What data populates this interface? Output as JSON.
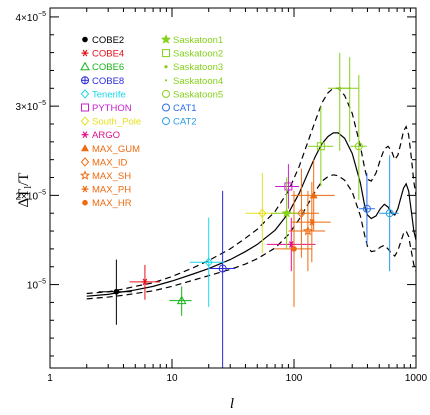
{
  "chart_data": {
    "type": "scatter",
    "title": "",
    "xlabel": "l",
    "ylabel": "ΔT",
    "ylabel_sub": "l",
    "ylabel_tail": "/T",
    "xscale": "log",
    "yscale": "linear",
    "xlim": [
      1,
      1000
    ],
    "ylim": [
      6.5e-07,
      4.1e-05
    ],
    "x_ticks": [
      {
        "value": 1,
        "label": "1"
      },
      {
        "value": 10,
        "label": "10"
      },
      {
        "value": 100,
        "label": "100"
      },
      {
        "value": 1000,
        "label": "1000"
      }
    ],
    "y_ticks": [
      {
        "value": 1e-05,
        "mant": "10",
        "exp": "−5"
      },
      {
        "value": 2e-05,
        "mant": "2×10",
        "exp": "−5"
      },
      {
        "value": 3e-05,
        "mant": "3×10",
        "exp": "−5"
      },
      {
        "value": 4e-05,
        "mant": "4×10",
        "exp": "−5"
      }
    ],
    "legend_position": "top-left",
    "series": [
      {
        "name": "COBE2",
        "color": "#000000",
        "marker": "filled-circle",
        "points": [
          {
            "x": 3.5,
            "y": 9.2e-06,
            "ylo": 5.5e-06,
            "yhi": 1.28e-05,
            "xlo": 2.5,
            "xhi": 4.7
          }
        ]
      },
      {
        "name": "COBE4",
        "color": "#e8101c",
        "marker": "star",
        "points": [
          {
            "x": 6,
            "y": 1.03e-05,
            "ylo": 8.3e-06,
            "yhi": 1.22e-05,
            "xlo": 4.5,
            "xhi": 8
          }
        ]
      },
      {
        "name": "COBE6",
        "color": "#19b419",
        "marker": "open-triangle",
        "points": [
          {
            "x": 12,
            "y": 8.2e-06,
            "ylo": 6.5e-06,
            "yhi": 9.8e-06,
            "xlo": 9.5,
            "xhi": 14.5
          }
        ]
      },
      {
        "name": "COBE8",
        "color": "#2a2ad8",
        "marker": "crossed-circle",
        "points": [
          {
            "x": 26,
            "y": 1.18e-05,
            "ylo": 0.0,
            "yhi": 2.05e-05,
            "xlo": 20,
            "xhi": 33
          }
        ]
      },
      {
        "name": "Tenerife",
        "color": "#1ad7e6",
        "marker": "open-diamond",
        "points": [
          {
            "x": 20,
            "y": 1.25e-05,
            "ylo": 7.5e-06,
            "yhi": 1.75e-05,
            "xlo": 14,
            "xhi": 27
          }
        ]
      },
      {
        "name": "PYTHON",
        "color": "#c71fd0",
        "marker": "open-square",
        "points": [
          {
            "x": 90,
            "y": 2.1e-05,
            "ylo": 1.85e-05,
            "yhi": 2.35e-05,
            "xlo": 70,
            "xhi": 110
          }
        ]
      },
      {
        "name": "South_Pole",
        "color": "#e6e020",
        "marker": "open-diamond",
        "points": [
          {
            "x": 55,
            "y": 1.8e-05,
            "ylo": 1.35e-05,
            "yhi": 2.25e-05,
            "xlo": 40,
            "xhi": 75
          }
        ]
      },
      {
        "name": "ARGO",
        "color": "#e0108c",
        "marker": "star",
        "points": [
          {
            "x": 95,
            "y": 1.45e-05,
            "ylo": 1.15e-05,
            "yhi": 1.75e-05,
            "xlo": 60,
            "xhi": 150
          }
        ]
      },
      {
        "name": "MAX_GUM",
        "color": "#ee6a10",
        "marker": "filled-triangle",
        "points": [
          {
            "x": 145,
            "y": 2e-05,
            "ylo": 1.6e-05,
            "yhi": 2.4e-05,
            "xlo": 95,
            "xhi": 215
          }
        ]
      },
      {
        "name": "MAX_ID",
        "color": "#ee6a10",
        "marker": "open-diamond",
        "points": [
          {
            "x": 115,
            "y": 1.8e-05,
            "ylo": 1.3e-05,
            "yhi": 2.3e-05,
            "xlo": 80,
            "xhi": 160
          }
        ]
      },
      {
        "name": "MAX_SH",
        "color": "#ee6a10",
        "marker": "open-star",
        "points": [
          {
            "x": 130,
            "y": 1.6e-05,
            "ylo": 1.15e-05,
            "yhi": 2.05e-05,
            "xlo": 90,
            "xhi": 180
          }
        ]
      },
      {
        "name": "MAX_PH",
        "color": "#ee6a10",
        "marker": "star",
        "points": [
          {
            "x": 140,
            "y": 1.7e-05,
            "ylo": 1.25e-05,
            "yhi": 2.15e-05,
            "xlo": 95,
            "xhi": 200
          }
        ]
      },
      {
        "name": "MAX_HR",
        "color": "#ee6a10",
        "marker": "filled-circle",
        "points": [
          {
            "x": 100,
            "y": 1.4e-05,
            "ylo": 7.5e-06,
            "yhi": 2.05e-05,
            "xlo": 70,
            "xhi": 140
          }
        ]
      },
      {
        "name": "Saskatoon1",
        "color": "#86d11c",
        "marker": "filled-star",
        "points": [
          {
            "x": 87,
            "y": 1.8e-05,
            "ylo": 1.4e-05,
            "yhi": 2.2e-05,
            "xlo": 65,
            "xhi": 110
          }
        ]
      },
      {
        "name": "Saskatoon2",
        "color": "#86d11c",
        "marker": "open-square",
        "points": [
          {
            "x": 166,
            "y": 2.55e-05,
            "ylo": 2.1e-05,
            "yhi": 3e-05,
            "xlo": 130,
            "xhi": 210
          }
        ]
      },
      {
        "name": "Saskatoon3",
        "color": "#86d11c",
        "marker": "dot",
        "points": [
          {
            "x": 237,
            "y": 3.2e-05,
            "ylo": 2.5e-05,
            "yhi": 3.6e-05,
            "xlo": 190,
            "xhi": 290
          }
        ]
      },
      {
        "name": "Saskatoon4",
        "color": "#86d11c",
        "marker": "small-dot",
        "points": [
          {
            "x": 286,
            "y": 3.2e-05,
            "ylo": 2.6e-05,
            "yhi": 3.55e-05,
            "xlo": 240,
            "xhi": 340
          }
        ]
      },
      {
        "name": "Saskatoon5",
        "color": "#86d11c",
        "marker": "open-circle",
        "points": [
          {
            "x": 340,
            "y": 2.55e-05,
            "ylo": 1.95e-05,
            "yhi": 3.35e-05,
            "xlo": 290,
            "xhi": 395
          }
        ]
      },
      {
        "name": "CAT1",
        "color": "#2a6fe6",
        "marker": "open-circle",
        "points": [
          {
            "x": 396,
            "y": 1.85e-05,
            "ylo": 1.45e-05,
            "yhi": 2.25e-05,
            "xlo": 340,
            "xhi": 460
          }
        ]
      },
      {
        "name": "CAT2",
        "color": "#2a9be6",
        "marker": "open-circle",
        "points": [
          {
            "x": 608,
            "y": 1.8e-05,
            "ylo": 1.15e-05,
            "yhi": 2.45e-05,
            "xlo": 500,
            "xhi": 720
          }
        ]
      }
    ],
    "curves": [
      {
        "style": "solid",
        "color": "#000000",
        "points": [
          [
            2,
            8.7e-06
          ],
          [
            3,
            8.9e-06
          ],
          [
            4,
            9.2e-06
          ],
          [
            5,
            9.4e-06
          ],
          [
            7,
            9.8e-06
          ],
          [
            10,
            1.04e-05
          ],
          [
            15,
            1.12e-05
          ],
          [
            20,
            1.18e-05
          ],
          [
            30,
            1.28e-05
          ],
          [
            40,
            1.37e-05
          ],
          [
            50,
            1.45e-05
          ],
          [
            70,
            1.61e-05
          ],
          [
            90,
            1.8e-05
          ],
          [
            110,
            2.02e-05
          ],
          [
            130,
            2.25e-05
          ],
          [
            150,
            2.44e-05
          ],
          [
            170,
            2.58e-05
          ],
          [
            190,
            2.66e-05
          ],
          [
            210,
            2.7e-05
          ],
          [
            230,
            2.7e-05
          ],
          [
            260,
            2.64e-05
          ],
          [
            300,
            2.47e-05
          ],
          [
            350,
            2.14e-05
          ],
          [
            380,
            1.88e-05
          ],
          [
            400,
            1.78e-05
          ],
          [
            430,
            1.74e-05
          ],
          [
            470,
            1.77e-05
          ],
          [
            510,
            1.85e-05
          ],
          [
            550,
            1.9e-05
          ],
          [
            590,
            1.87e-05
          ],
          [
            630,
            1.8e-05
          ],
          [
            670,
            1.78e-05
          ],
          [
            710,
            1.85e-05
          ],
          [
            750,
            1.97e-05
          ],
          [
            790,
            2.08e-05
          ],
          [
            830,
            2.13e-05
          ],
          [
            870,
            2.05e-05
          ],
          [
            920,
            1.8e-05
          ],
          [
            960,
            1.6e-05
          ],
          [
            1000,
            1.5e-05
          ]
        ]
      },
      {
        "style": "dashed",
        "color": "#000000",
        "points": [
          [
            2,
            9e-06
          ],
          [
            3,
            9.2e-06
          ],
          [
            4,
            9.5e-06
          ],
          [
            5,
            9.8e-06
          ],
          [
            7,
            1.02e-05
          ],
          [
            10,
            1.09e-05
          ],
          [
            15,
            1.19e-05
          ],
          [
            20,
            1.27e-05
          ],
          [
            30,
            1.4e-05
          ],
          [
            40,
            1.52e-05
          ],
          [
            50,
            1.62e-05
          ],
          [
            70,
            1.82e-05
          ],
          [
            90,
            2.05e-05
          ],
          [
            110,
            2.32e-05
          ],
          [
            130,
            2.6e-05
          ],
          [
            150,
            2.84e-05
          ],
          [
            170,
            3.04e-05
          ],
          [
            190,
            3.15e-05
          ],
          [
            210,
            3.2e-05
          ],
          [
            230,
            3.2e-05
          ],
          [
            260,
            3.12e-05
          ],
          [
            300,
            2.92e-05
          ],
          [
            350,
            2.55e-05
          ],
          [
            380,
            2.3e-05
          ],
          [
            400,
            2.18e-05
          ],
          [
            430,
            2.16e-05
          ],
          [
            470,
            2.25e-05
          ],
          [
            510,
            2.4e-05
          ],
          [
            550,
            2.52e-05
          ],
          [
            590,
            2.55e-05
          ],
          [
            630,
            2.5e-05
          ],
          [
            670,
            2.4e-05
          ],
          [
            710,
            2.45e-05
          ],
          [
            750,
            2.58e-05
          ],
          [
            790,
            2.72e-05
          ],
          [
            830,
            2.77e-05
          ],
          [
            870,
            2.68e-05
          ],
          [
            920,
            2.4e-05
          ],
          [
            960,
            2.15e-05
          ],
          [
            1000,
            2e-05
          ]
        ]
      },
      {
        "style": "dashed",
        "color": "#000000",
        "points": [
          [
            2,
            8.4e-06
          ],
          [
            3,
            8.6e-06
          ],
          [
            4,
            8.8e-06
          ],
          [
            5,
            9e-06
          ],
          [
            7,
            9.3e-06
          ],
          [
            10,
            9.8e-06
          ],
          [
            15,
            1.05e-05
          ],
          [
            20,
            1.1e-05
          ],
          [
            30,
            1.17e-05
          ],
          [
            40,
            1.23e-05
          ],
          [
            50,
            1.29e-05
          ],
          [
            70,
            1.41e-05
          ],
          [
            90,
            1.56e-05
          ],
          [
            110,
            1.73e-05
          ],
          [
            130,
            1.9e-05
          ],
          [
            150,
            2.05e-05
          ],
          [
            170,
            2.16e-05
          ],
          [
            190,
            2.21e-05
          ],
          [
            210,
            2.23e-05
          ],
          [
            230,
            2.22e-05
          ],
          [
            260,
            2.17e-05
          ],
          [
            300,
            2.04e-05
          ],
          [
            350,
            1.77e-05
          ],
          [
            380,
            1.55e-05
          ],
          [
            400,
            1.43e-05
          ],
          [
            430,
            1.37e-05
          ],
          [
            470,
            1.38e-05
          ],
          [
            510,
            1.42e-05
          ],
          [
            550,
            1.44e-05
          ],
          [
            590,
            1.4e-05
          ],
          [
            630,
            1.35e-05
          ],
          [
            670,
            1.32e-05
          ],
          [
            710,
            1.38e-05
          ],
          [
            750,
            1.48e-05
          ],
          [
            790,
            1.57e-05
          ],
          [
            830,
            1.6e-05
          ],
          [
            870,
            1.54e-05
          ],
          [
            920,
            1.36e-05
          ],
          [
            960,
            1.22e-05
          ],
          [
            1000,
            1.15e-05
          ]
        ]
      }
    ]
  }
}
